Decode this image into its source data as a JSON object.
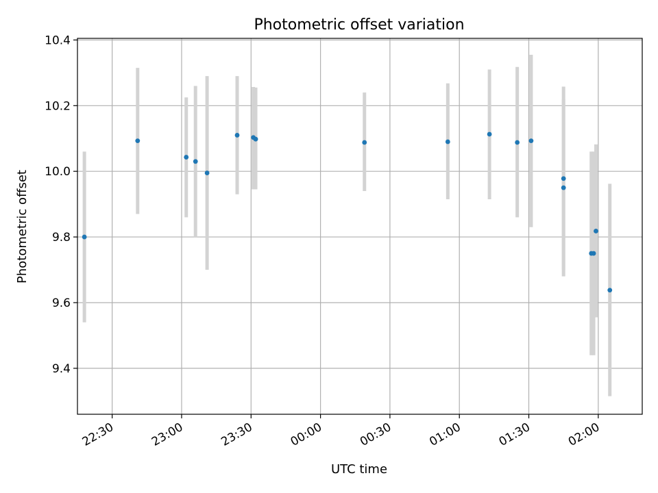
{
  "chart_data": {
    "type": "scatter",
    "title": "Photometric offset variation",
    "xlabel": "UTC time",
    "ylabel": "Photometric offset",
    "x_unit": "UTC time (hh:mm), axis spans evening 22:xx through 02:xx next morning",
    "xlim": [
      "22:15",
      "02:19"
    ],
    "ylim": [
      9.26,
      10.405
    ],
    "grid": true,
    "x_ticks": [
      "22:30",
      "23:00",
      "23:30",
      "00:00",
      "00:30",
      "01:00",
      "01:30",
      "02:00"
    ],
    "y_ticks": [
      "9.4",
      "9.6",
      "9.8",
      "10.0",
      "10.2",
      "10.4"
    ],
    "marker_color": "#1f77b4",
    "errorbar_color": "#d3d3d3",
    "points": [
      {
        "time": "22:18",
        "y": 9.8,
        "err_low": 9.54,
        "err_high": 10.06
      },
      {
        "time": "22:41",
        "y": 10.093,
        "err_low": 9.87,
        "err_high": 10.315
      },
      {
        "time": "23:02",
        "y": 10.043,
        "err_low": 9.86,
        "err_high": 10.225
      },
      {
        "time": "23:06",
        "y": 10.03,
        "err_low": 9.8,
        "err_high": 10.26
      },
      {
        "time": "23:11",
        "y": 9.995,
        "err_low": 9.7,
        "err_high": 10.29
      },
      {
        "time": "23:24",
        "y": 10.11,
        "err_low": 9.93,
        "err_high": 10.29
      },
      {
        "time": "23:31",
        "y": 10.103,
        "err_low": 9.945,
        "err_high": 10.257
      },
      {
        "time": "23:32",
        "y": 10.098,
        "err_low": 9.945,
        "err_high": 10.255
      },
      {
        "time": "00:19",
        "y": 10.088,
        "err_low": 9.94,
        "err_high": 10.24
      },
      {
        "time": "00:55",
        "y": 10.09,
        "err_low": 9.915,
        "err_high": 10.268
      },
      {
        "time": "01:13",
        "y": 10.113,
        "err_low": 9.915,
        "err_high": 10.31
      },
      {
        "time": "01:25",
        "y": 10.088,
        "err_low": 9.86,
        "err_high": 10.318
      },
      {
        "time": "01:31",
        "y": 10.093,
        "err_low": 9.83,
        "err_high": 10.355
      },
      {
        "time": "01:45",
        "y": 9.978,
        "err_low": 9.7,
        "err_high": 10.258
      },
      {
        "time": "01:45",
        "y": 9.95,
        "err_low": 9.68,
        "err_high": 10.22
      },
      {
        "time": "01:57",
        "y": 9.75,
        "err_low": 9.44,
        "err_high": 10.06
      },
      {
        "time": "01:58",
        "y": 9.75,
        "err_low": 9.44,
        "err_high": 10.06
      },
      {
        "time": "01:59",
        "y": 9.818,
        "err_low": 9.555,
        "err_high": 10.082
      },
      {
        "time": "02:05",
        "y": 9.638,
        "err_low": 9.315,
        "err_high": 9.962
      }
    ]
  }
}
